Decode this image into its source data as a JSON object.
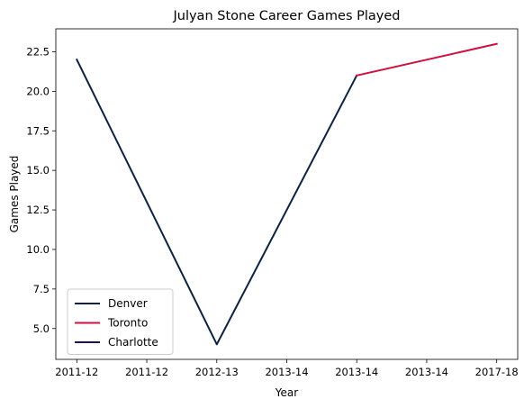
{
  "chart_data": {
    "type": "line",
    "title": "Julyan Stone Career Games Played",
    "xlabel": "Year",
    "ylabel": "Games Played",
    "categories": [
      "2011-12",
      "2011-12",
      "2012-13",
      "2013-14",
      "2013-14",
      "2013-14",
      "2017-18"
    ],
    "x_positions": [
      0,
      1,
      2,
      3,
      4,
      5,
      6
    ],
    "ylim": [
      3.05,
      23.95
    ],
    "yticks": [
      5.0,
      7.5,
      10.0,
      12.5,
      15.0,
      17.5,
      20.0,
      22.5
    ],
    "ytick_labels": [
      "5.0",
      "7.5",
      "10.0",
      "12.5",
      "15.0",
      "17.5",
      "20.0",
      "22.5"
    ],
    "grid": false,
    "legend_position": "lower-left",
    "series": [
      {
        "name": "Denver",
        "color": "#0e2240",
        "x": [
          0,
          2,
          4
        ],
        "values": [
          22,
          4,
          21
        ]
      },
      {
        "name": "Toronto",
        "color": "#ce1141",
        "x": [
          4,
          6
        ],
        "values": [
          21,
          23
        ]
      },
      {
        "name": "Charlotte",
        "color": "#1d1160",
        "x": [],
        "values": []
      }
    ]
  }
}
